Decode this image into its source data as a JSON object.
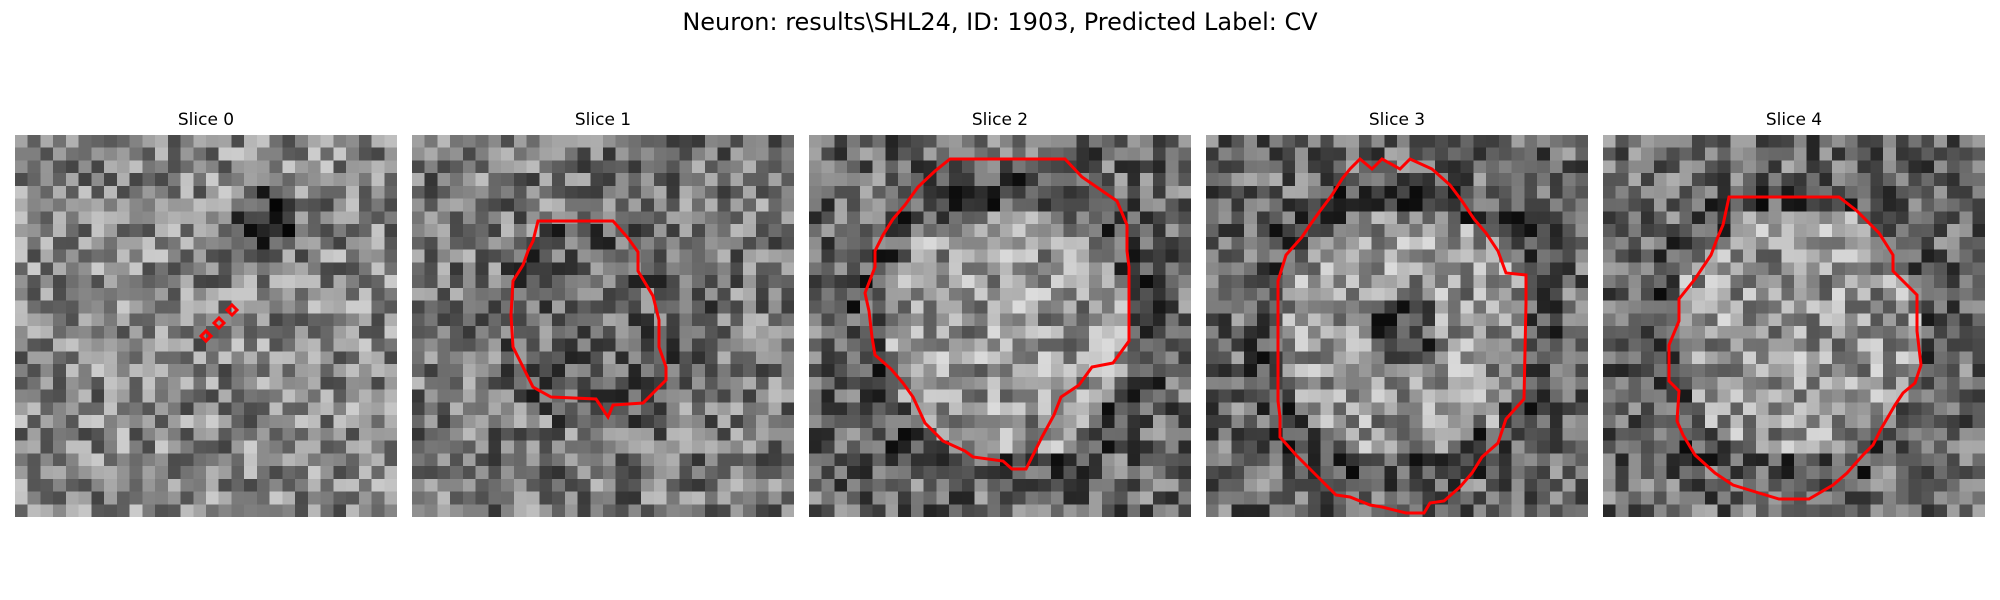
{
  "figure": {
    "title": "Neuron: results\\SHL24, ID: 1903, Predicted Label: CV"
  },
  "panels": [
    {
      "title": "Slice 0",
      "bright_center": false,
      "has_contour": true
    },
    {
      "title": "Slice 1",
      "bright_center": false,
      "has_contour": true
    },
    {
      "title": "Slice 2",
      "bright_center": true,
      "has_contour": true
    },
    {
      "title": "Slice 3",
      "bright_center": true,
      "has_contour": true
    },
    {
      "title": "Slice 4",
      "bright_center": true,
      "has_contour": true
    }
  ],
  "colors": {
    "contour": "#ff0000",
    "background": "#ffffff"
  },
  "image_style": {
    "colormap": "gray",
    "grid_cells": 30
  }
}
